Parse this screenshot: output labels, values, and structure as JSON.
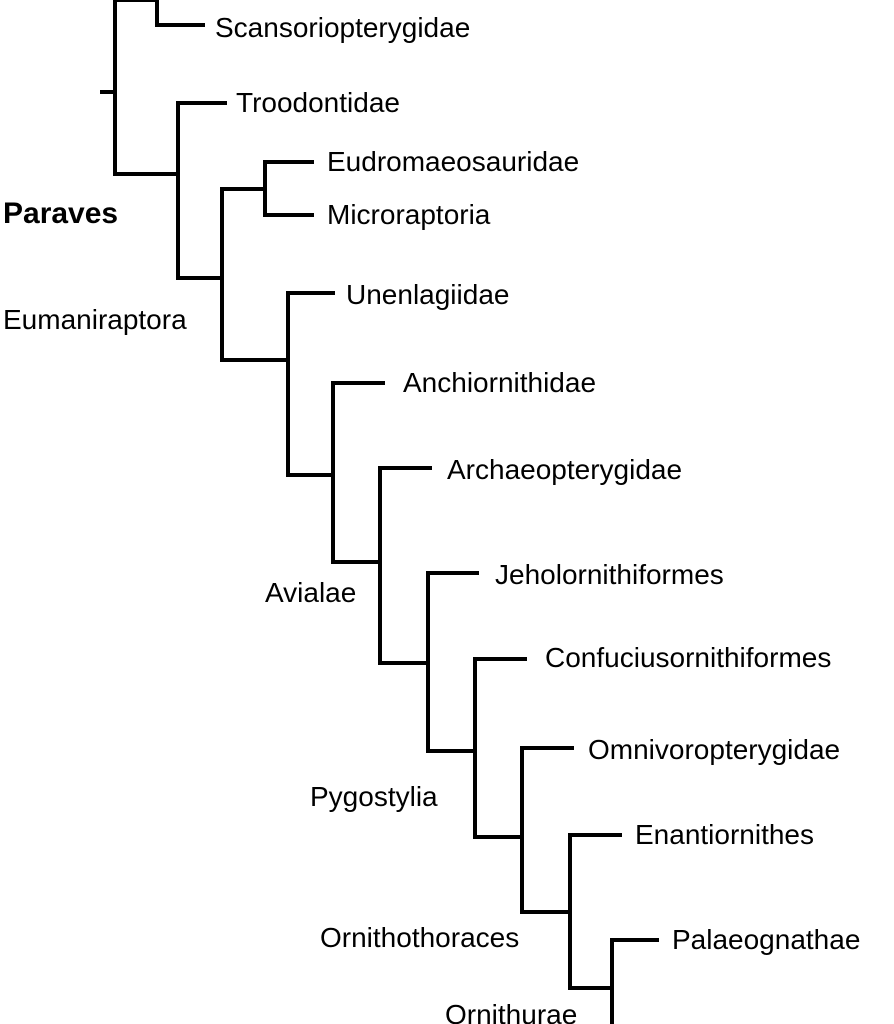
{
  "taxa": [
    "Scansoriopterygidae",
    "Troodontidae",
    "Eudromaeosauridae",
    "Microraptoria",
    "Unenlagiidae",
    "Anchiornithidae",
    "Archaeopterygidae",
    "Jeholornithiformes",
    "Confuciusornithiformes",
    "Omnivoropterygidae",
    "Enantiornithes",
    "Palaeognathae"
  ],
  "clades": [
    "Paraves",
    "Eumaniraptora",
    "Avialae",
    "Pygostylia",
    "Ornithothoraces",
    "Ornithurae"
  ],
  "line_color": "#000000"
}
